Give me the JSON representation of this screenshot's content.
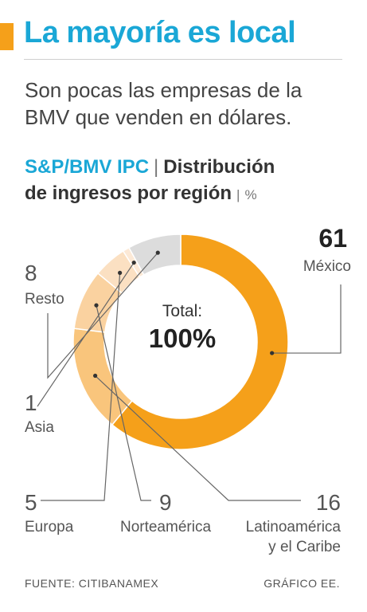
{
  "header": {
    "title": "La mayoría es local",
    "subtitle_line1": "Son pocas las empresas de la",
    "subtitle_line2": "BMV que venden en dólares.",
    "index_name": "S&P/BMV IPC",
    "separator": "|",
    "chart_title_line1": "Distribución",
    "chart_title_line2": "de ingresos por región",
    "unit": "%"
  },
  "colors": {
    "accent": "#f5a01a",
    "title_blue": "#1aa7d6"
  },
  "chart_data": {
    "type": "pie",
    "style": "donut",
    "center_label": "Total:",
    "center_value": "100%",
    "slices": [
      {
        "label": "México",
        "value": 61,
        "value_text": "61",
        "color": "#f5a01a"
      },
      {
        "label": "Latinoamérica y el Caribe",
        "label_lines": [
          "Latinoamérica",
          "y el Caribe"
        ],
        "value": 16,
        "value_text": "16",
        "color": "#f9c57c"
      },
      {
        "label": "Norteamérica",
        "value": 9,
        "value_text": "9",
        "color": "#fad2a0"
      },
      {
        "label": "Europa",
        "value": 5,
        "value_text": "5",
        "color": "#fbe0c2"
      },
      {
        "label": "Asia",
        "value": 1,
        "value_text": "1",
        "color": "#fce9d6"
      },
      {
        "label": "Resto",
        "value": 8,
        "value_text": "8",
        "color": "#dcdcdc"
      }
    ]
  },
  "footer": {
    "source": "FUENTE: CITIBANAMEX",
    "credit": "GRÁFICO EE."
  }
}
